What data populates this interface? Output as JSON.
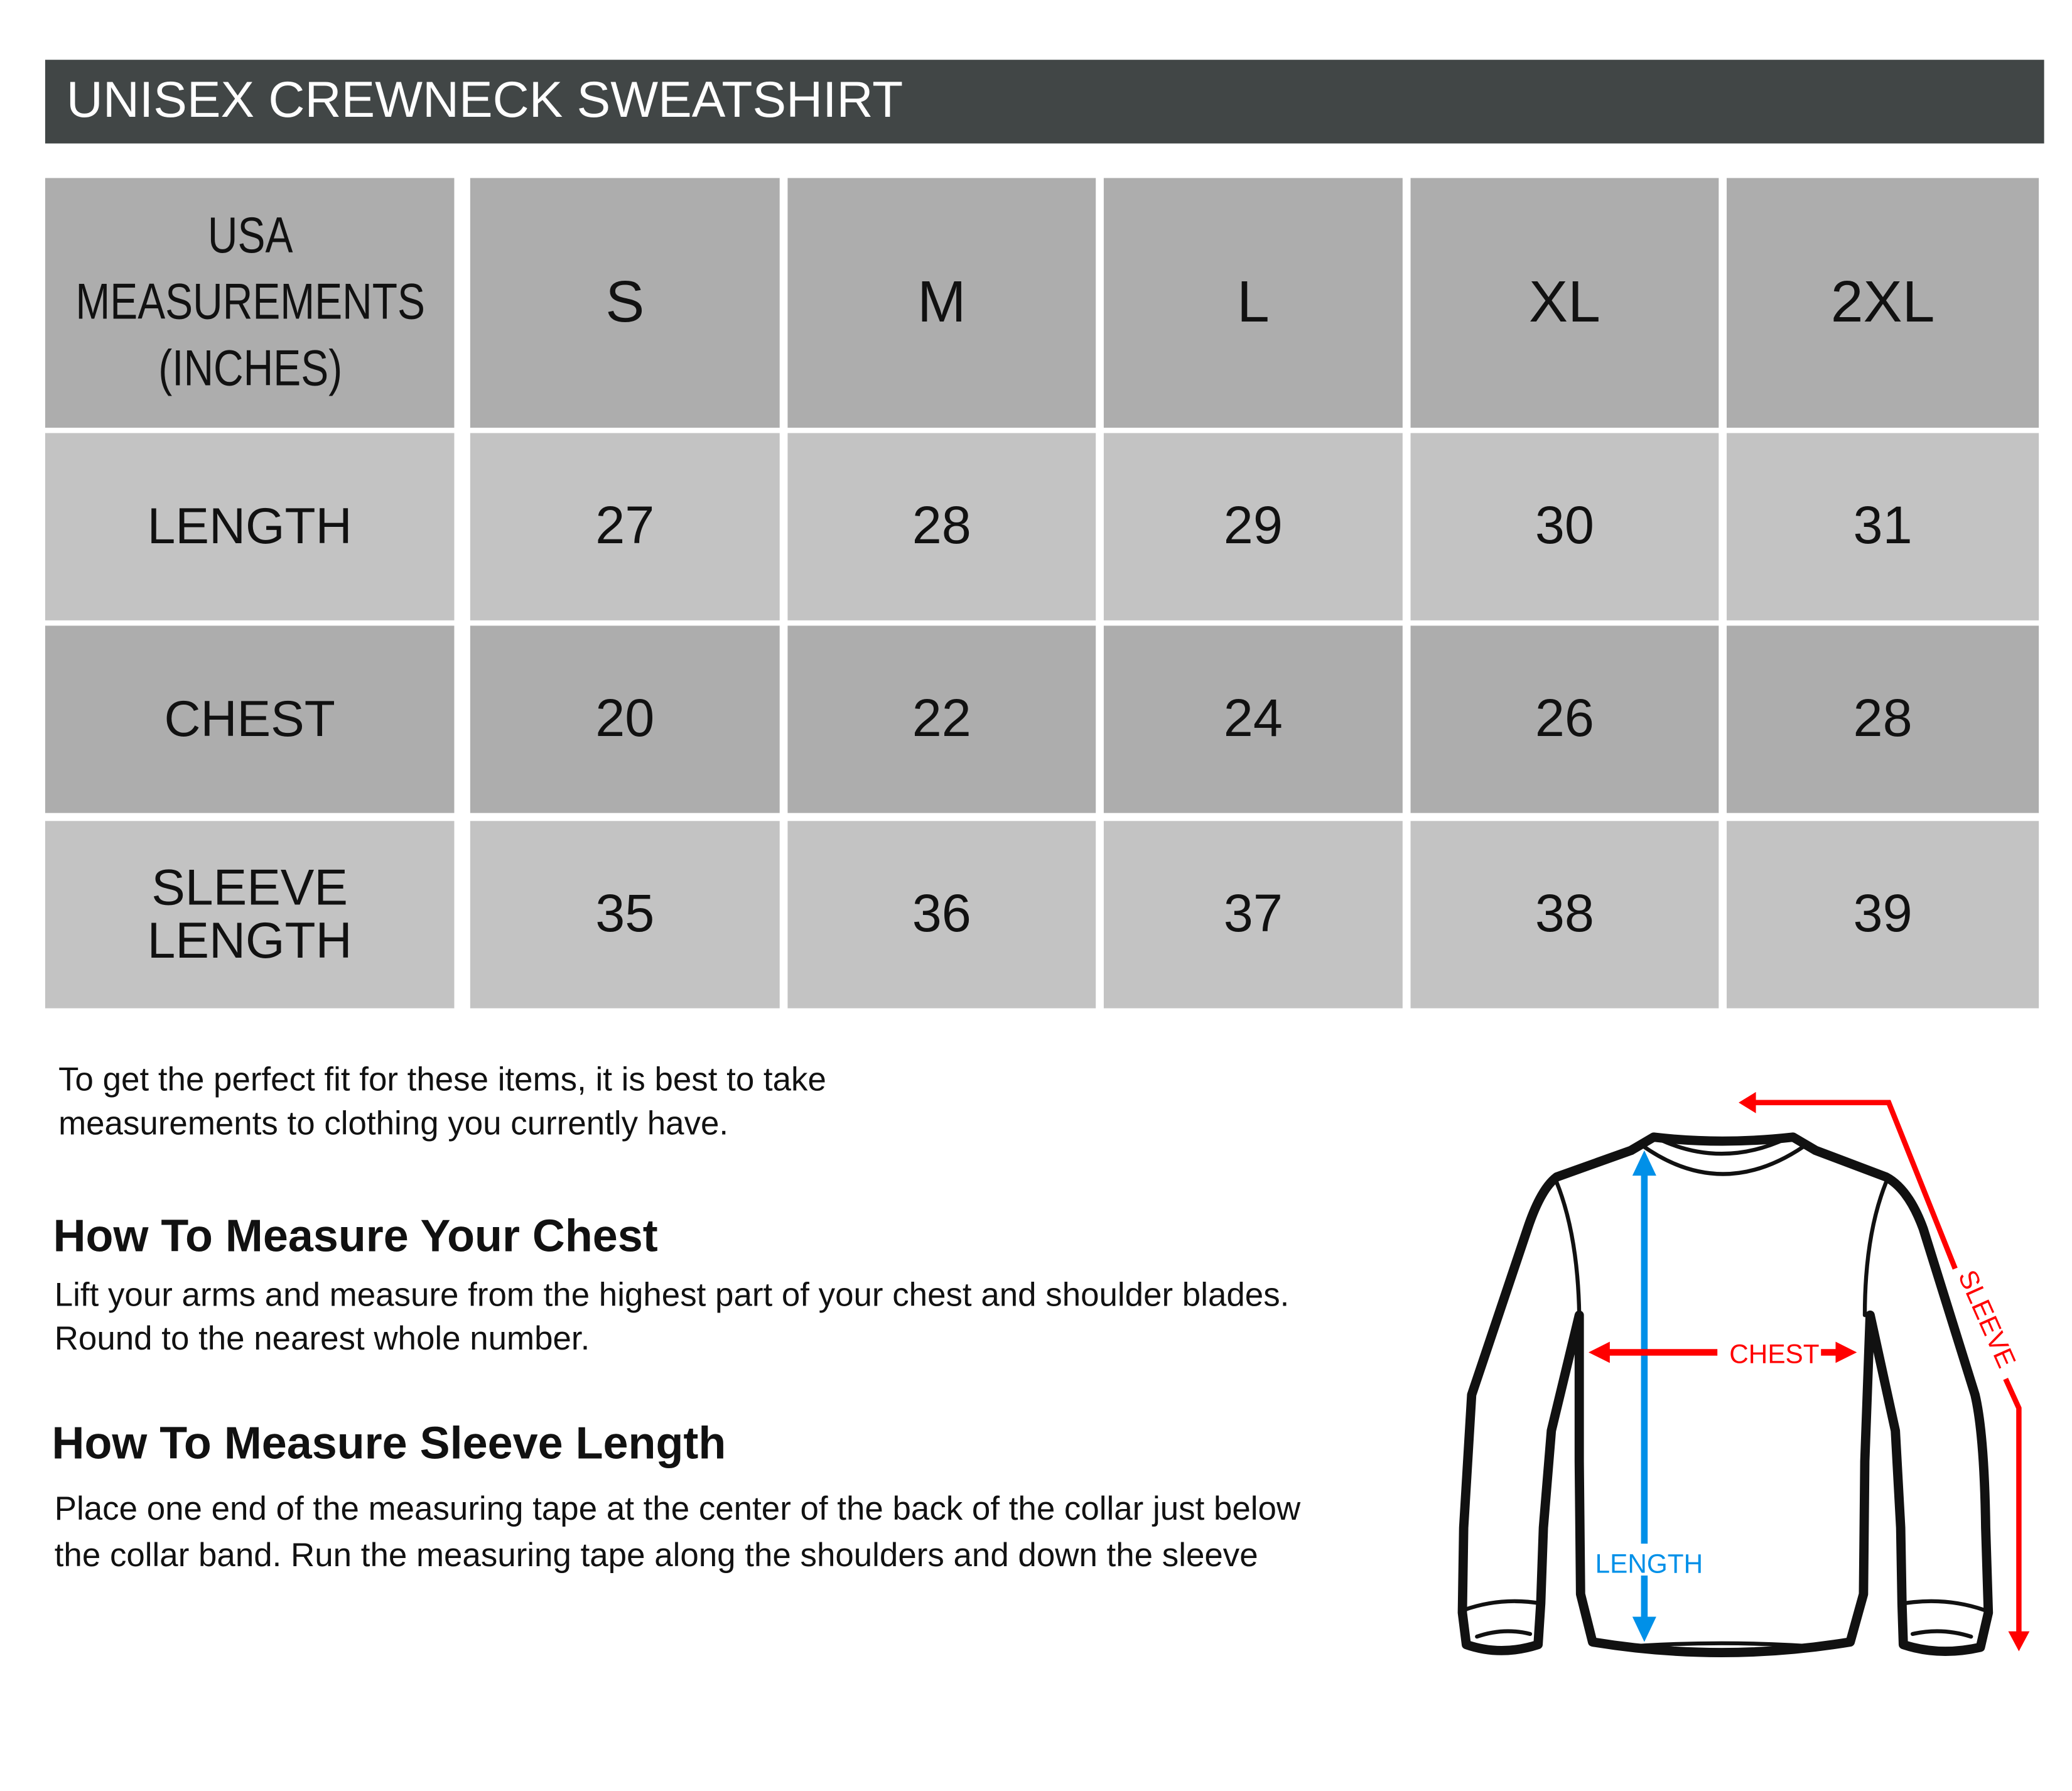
{
  "title": "UNISEX CREWNECK SWEATSHIRT",
  "table": {
    "corner_lines": [
      "USA",
      "MEASUREMENTS",
      "(INCHES)"
    ],
    "sizes": [
      "S",
      "M",
      "L",
      "XL",
      "2XL"
    ],
    "rows": [
      {
        "label": "LENGTH",
        "values": [
          "27",
          "28",
          "29",
          "30",
          "31"
        ]
      },
      {
        "label": "CHEST",
        "values": [
          "20",
          "22",
          "24",
          "26",
          "28"
        ]
      },
      {
        "label_lines": [
          "SLEEVE",
          "LENGTH"
        ],
        "values": [
          "35",
          "36",
          "37",
          "38",
          "39"
        ]
      }
    ]
  },
  "intro": [
    "To get the perfect fit for these items, it is best to take",
    "measurements to clothing you currently have."
  ],
  "chest_section": {
    "heading": "How To Measure Your Chest",
    "lines": [
      "Lift your arms and measure from the highest part of your chest and shoulder blades.",
      "Round to the nearest whole number."
    ]
  },
  "sleeve_section": {
    "heading": "How To Measure Sleeve Length",
    "lines": [
      "Place one end of the measuring tape at the center of the back of the collar just below",
      "the collar band. Run the measuring tape along the shoulders and down the sleeve"
    ]
  },
  "diagram": {
    "length_label": "LENGTH",
    "chest_label": "CHEST",
    "sleeve_label": "SLEEVE",
    "colors": {
      "length": "#0090e8",
      "chest": "#ff0000",
      "sleeve": "#ff0000",
      "title_bar": "#414646",
      "row_dark": "#adadad",
      "row_light": "#c3c3c3"
    }
  }
}
